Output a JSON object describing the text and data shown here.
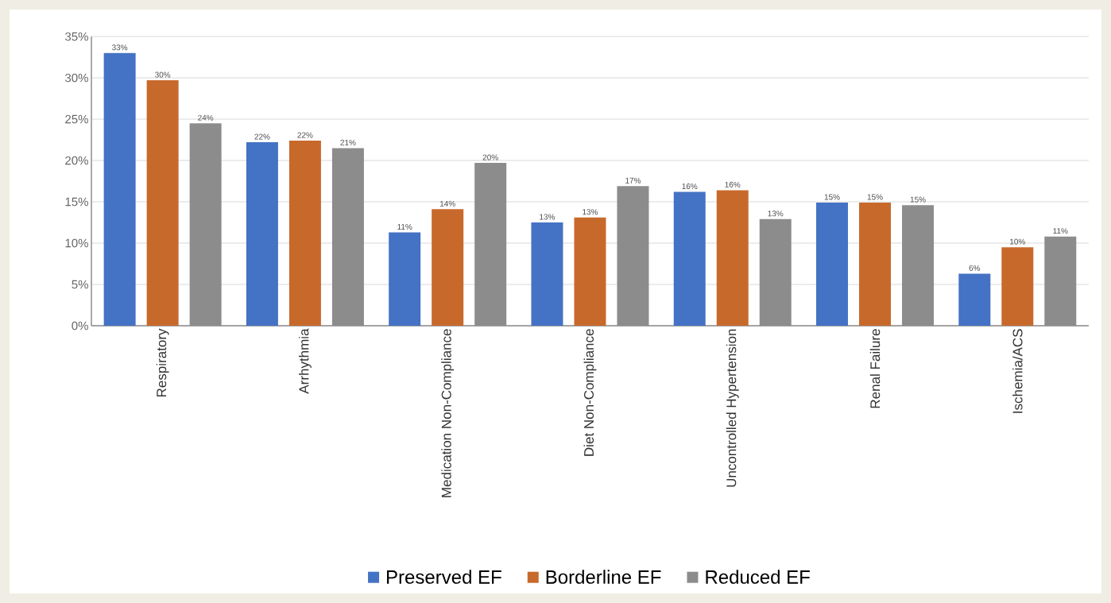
{
  "chart_data": {
    "type": "bar",
    "categories": [
      "Respiratory",
      "Arrhythmia",
      "Medication Non-Compliance",
      "Diet Non-Compliance",
      "Uncontrolled Hypertension",
      "Renal Failure",
      "Ischemia/ACS"
    ],
    "series": [
      {
        "name": "Preserved EF",
        "color": "#4472c4",
        "values": [
          33.0,
          22.2,
          11.3,
          12.5,
          16.2,
          14.9,
          6.3
        ],
        "value_labels": [
          "33%",
          "22%",
          "11%",
          "13%",
          "16%",
          "15%",
          "6%"
        ]
      },
      {
        "name": "Borderline EF",
        "color": "#c8692c",
        "values": [
          29.7,
          22.4,
          14.1,
          13.1,
          16.4,
          14.9,
          9.5
        ],
        "value_labels": [
          "30%",
          "22%",
          "14%",
          "13%",
          "16%",
          "15%",
          "10%"
        ]
      },
      {
        "name": "Reduced EF",
        "color": "#8c8c8c",
        "values": [
          24.5,
          21.5,
          19.7,
          16.9,
          12.9,
          14.6,
          10.8
        ],
        "value_labels": [
          "24%",
          "21%",
          "20%",
          "17%",
          "13%",
          "15%",
          "11%"
        ]
      }
    ],
    "ylim": [
      0,
      35
    ],
    "yticks": [
      {
        "value": 0,
        "label": "0%"
      },
      {
        "value": 5,
        "label": "5%"
      },
      {
        "value": 10,
        "label": "10%"
      },
      {
        "value": 15,
        "label": "15%"
      },
      {
        "value": 20,
        "label": "20%"
      },
      {
        "value": 25,
        "label": "25%"
      },
      {
        "value": 30,
        "label": "30%"
      },
      {
        "value": 35,
        "label": "35%"
      }
    ],
    "grid": "y",
    "legend": "bottom"
  }
}
